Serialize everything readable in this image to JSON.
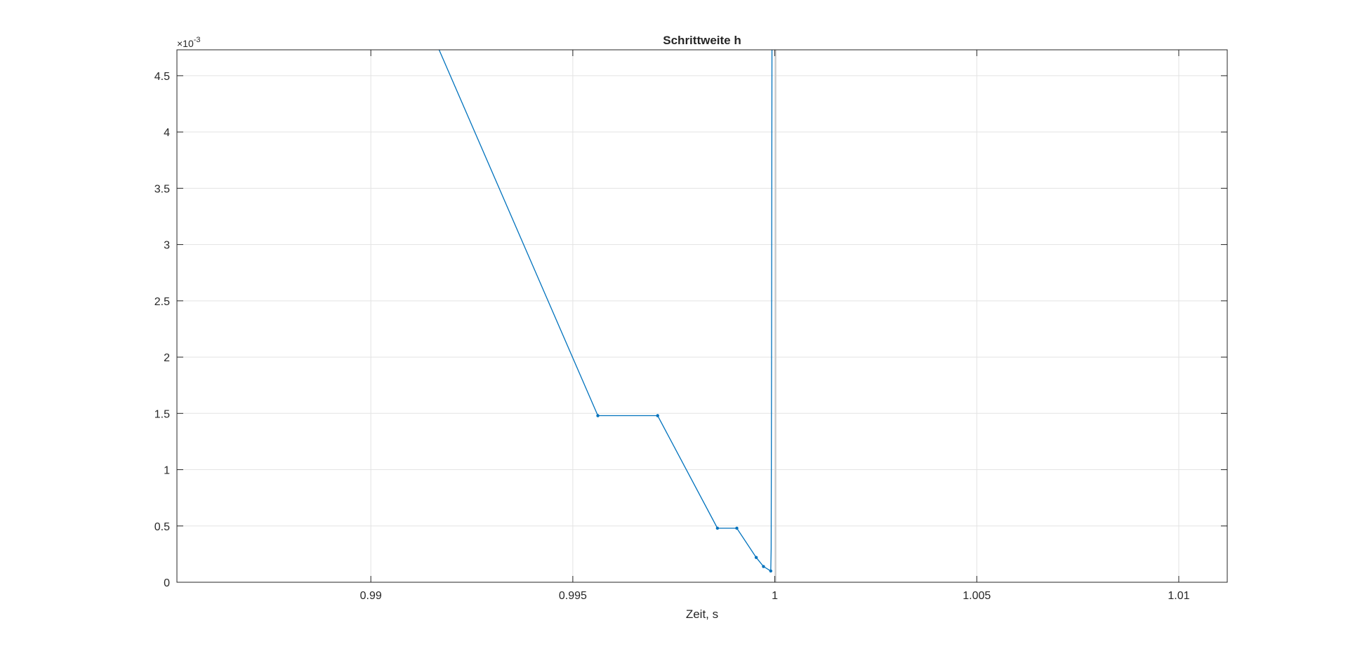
{
  "chart_data": {
    "type": "line",
    "title": "Schrittweite h",
    "xlabel": "Zeit, s",
    "ylabel": "",
    "y_exponent_label": {
      "base": "×10",
      "exp": "-3"
    },
    "xlim": [
      0.9852,
      1.0112
    ],
    "ylim": [
      0,
      0.00473
    ],
    "x_ticks": [
      0.99,
      0.995,
      1,
      1.005,
      1.01
    ],
    "x_tick_labels": [
      "0.99",
      "0.995",
      "1",
      "1.005",
      "1.01"
    ],
    "y_ticks": [
      0,
      0.0005,
      0.001,
      0.0015,
      0.002,
      0.0025,
      0.003,
      0.0035,
      0.004,
      0.0045
    ],
    "y_tick_labels": [
      "0",
      "0.5",
      "1",
      "1.5",
      "2",
      "2.5",
      "3",
      "3.5",
      "4",
      "4.5"
    ],
    "grid": true,
    "line_color": "#0072BD",
    "series": [
      {
        "x": [
          0.99169,
          0.99562,
          0.9971,
          0.99858,
          0.99906,
          0.99954,
          0.99972,
          0.9999,
          0.99991,
          0.99992,
          0.99993
        ],
        "y": [
          0.00473,
          0.00148,
          0.00148,
          0.00048,
          0.00048,
          0.00022,
          0.00014,
          0.0001,
          0.0003,
          0.002,
          0.00473
        ],
        "marker": [
          false,
          true,
          true,
          true,
          true,
          true,
          true,
          true,
          false,
          false,
          false
        ]
      }
    ],
    "vertical_line_x": 1.00002
  }
}
